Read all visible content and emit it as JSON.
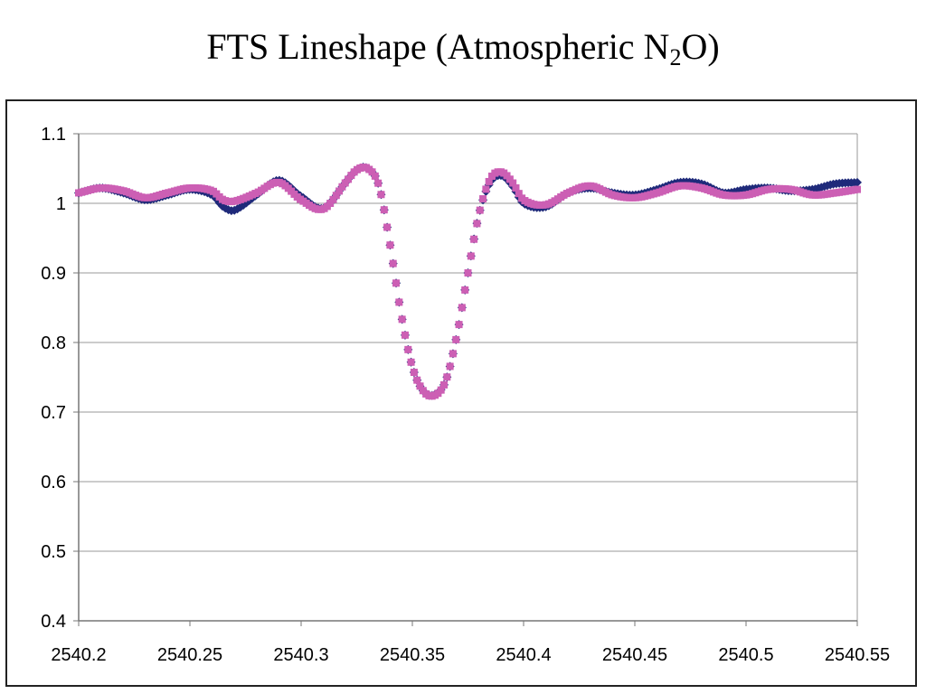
{
  "title": {
    "prefix": "FTS Lineshape (Atmospheric N",
    "subscript": "2",
    "suffix": "O)"
  },
  "colors": {
    "series_measured": "#1f2a7a",
    "series_model": "#cc5fb4",
    "gridline": "#9a9a9a",
    "axis": "#777777"
  },
  "chart_data": {
    "type": "scatter",
    "title": "FTS Lineshape (Atmospheric N2O)",
    "xlabel": "",
    "ylabel": "",
    "xlim": [
      2540.2,
      2540.55
    ],
    "ylim": [
      0.4,
      1.1
    ],
    "grid": true,
    "legend": "none",
    "x_ticks": [
      "2540.2",
      "2540.25",
      "2540.3",
      "2540.35",
      "2540.4",
      "2540.45",
      "2540.5",
      "2540.55"
    ],
    "y_ticks": [
      "0.4",
      "0.5",
      "0.6",
      "0.7",
      "0.8",
      "0.9",
      "1",
      "1.1"
    ],
    "x_tick_values": [
      2540.2,
      2540.25,
      2540.3,
      2540.35,
      2540.4,
      2540.45,
      2540.5,
      2540.55
    ],
    "y_tick_values": [
      0.4,
      0.5,
      0.6,
      0.7,
      0.8,
      0.9,
      1.0,
      1.1
    ],
    "series": [
      {
        "x": [
          2540.2,
          2540.21,
          2540.22,
          2540.23,
          2540.24,
          2540.25,
          2540.26,
          2540.265,
          2540.27,
          2540.28,
          2540.29,
          2540.3,
          2540.31,
          2540.32,
          2540.325,
          2540.33,
          2540.335,
          2540.34,
          2540.345,
          2540.35,
          2540.355,
          2540.36,
          2540.365,
          2540.37,
          2540.375,
          2540.38,
          2540.385,
          2540.39,
          2540.395,
          2540.4,
          2540.41,
          2540.42,
          2540.43,
          2540.44,
          2540.45,
          2540.46,
          2540.47,
          2540.48,
          2540.49,
          2540.5,
          2540.51,
          2540.52,
          2540.53,
          2540.54,
          2540.55
        ],
        "y": [
          1.015,
          1.022,
          1.015,
          1.005,
          1.012,
          1.02,
          1.012,
          0.995,
          0.99,
          1.012,
          1.033,
          1.01,
          0.993,
          1.03,
          1.048,
          1.05,
          1.025,
          0.94,
          0.84,
          0.765,
          0.73,
          0.725,
          0.745,
          0.81,
          0.9,
          0.985,
          1.03,
          1.04,
          1.025,
          1.0,
          0.995,
          1.015,
          1.022,
          1.015,
          1.012,
          1.02,
          1.03,
          1.028,
          1.015,
          1.02,
          1.022,
          1.018,
          1.02,
          1.028,
          1.03
        ]
      },
      {
        "x": [
          2540.2,
          2540.21,
          2540.22,
          2540.23,
          2540.24,
          2540.25,
          2540.26,
          2540.265,
          2540.27,
          2540.28,
          2540.29,
          2540.3,
          2540.31,
          2540.32,
          2540.325,
          2540.33,
          2540.335,
          2540.34,
          2540.345,
          2540.35,
          2540.355,
          2540.36,
          2540.365,
          2540.37,
          2540.375,
          2540.38,
          2540.385,
          2540.39,
          2540.395,
          2540.4,
          2540.41,
          2540.42,
          2540.43,
          2540.44,
          2540.45,
          2540.46,
          2540.47,
          2540.48,
          2540.49,
          2540.5,
          2540.51,
          2540.52,
          2540.53,
          2540.54,
          2540.55
        ],
        "y": [
          1.015,
          1.022,
          1.018,
          1.008,
          1.015,
          1.022,
          1.018,
          1.005,
          1.003,
          1.015,
          1.03,
          1.005,
          0.992,
          1.03,
          1.048,
          1.05,
          1.025,
          0.94,
          0.84,
          0.765,
          0.73,
          0.724,
          0.745,
          0.81,
          0.9,
          0.985,
          1.035,
          1.045,
          1.03,
          1.005,
          0.998,
          1.015,
          1.025,
          1.012,
          1.008,
          1.015,
          1.025,
          1.022,
          1.012,
          1.012,
          1.02,
          1.02,
          1.012,
          1.015,
          1.02
        ]
      }
    ]
  }
}
